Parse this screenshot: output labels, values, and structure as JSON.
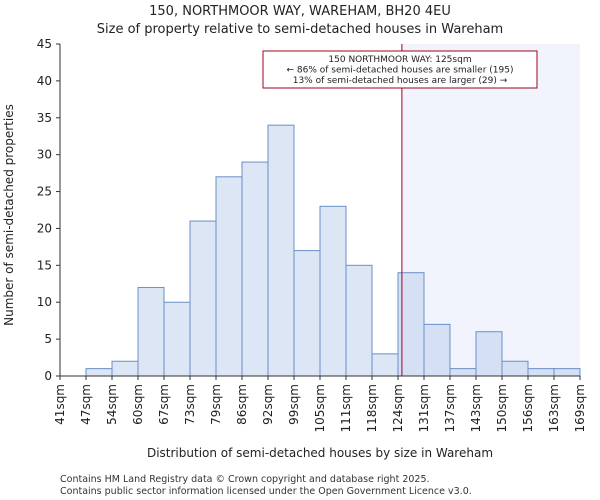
{
  "chart_data": {
    "type": "bar",
    "title": "150, NORTHMOOR WAY, WAREHAM, BH20 4EU",
    "subtitle": "Size of property relative to semi-detached houses in Wareham",
    "xlabel": "Distribution of semi-detached houses by size in Wareham",
    "ylabel": "Number of semi-detached properties",
    "x_tick_labels": [
      "41sqm",
      "47sqm",
      "54sqm",
      "60sqm",
      "67sqm",
      "73sqm",
      "79sqm",
      "86sqm",
      "92sqm",
      "99sqm",
      "105sqm",
      "111sqm",
      "118sqm",
      "124sqm",
      "131sqm",
      "137sqm",
      "143sqm",
      "150sqm",
      "156sqm",
      "163sqm",
      "169sqm"
    ],
    "values": [
      0,
      1,
      2,
      12,
      10,
      21,
      27,
      29,
      34,
      17,
      23,
      15,
      3,
      14,
      7,
      1,
      6,
      2,
      1,
      1
    ],
    "ylim": [
      0,
      45
    ],
    "y_ticks": [
      0,
      5,
      10,
      15,
      20,
      25,
      30,
      35,
      40,
      45
    ],
    "grid": false,
    "marker": {
      "value_sqm": 125,
      "highlight_from_bin": 13,
      "annotation_lines": [
        "150 NORTHMOOR WAY: 125sqm",
        "← 86% of semi-detached houses are smaller (195)",
        "13% of semi-detached houses are larger (29) →"
      ]
    },
    "colors": {
      "bar_fill": "#dce6f5",
      "bar_fill_highlight": "#d5e0f5",
      "bar_stroke": "#6a8fc8",
      "highlight_region": "#f1f4fc",
      "marker_line": "#a00020",
      "axis": "#333333"
    }
  },
  "footer": {
    "line1": "Contains HM Land Registry data © Crown copyright and database right 2025.",
    "line2": "Contains public sector information licensed under the Open Government Licence v3.0."
  }
}
